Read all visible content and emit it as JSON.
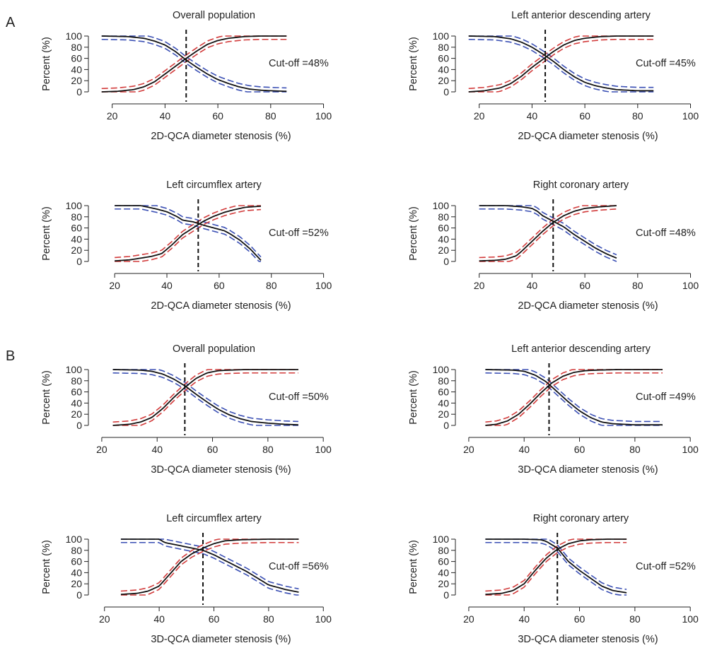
{
  "section_labels": [
    {
      "label": "A"
    },
    {
      "label": "B"
    }
  ],
  "chart_data": [
    {
      "type": "line",
      "section": "A",
      "title": "Overall population",
      "xlabel": "2D-QCA diameter stenosis (%)",
      "ylabel": "Percent (%)",
      "xlim": [
        15,
        102
      ],
      "ylim": [
        0,
        100
      ],
      "xticks": [
        20,
        40,
        60,
        80,
        100
      ],
      "yticks": [
        0,
        20,
        40,
        60,
        80,
        100
      ],
      "cutoff": 48,
      "annotation": "Cut-off =48%",
      "series": [
        {
          "role": "specificity",
          "color": "#3a4fb4",
          "x": [
            16,
            26,
            32,
            36,
            40,
            44,
            48,
            52,
            56,
            60,
            64,
            68,
            72,
            76,
            80,
            86
          ],
          "values": [
            100,
            99,
            96,
            91,
            84,
            72,
            57,
            44,
            32,
            22,
            15,
            9,
            5,
            3,
            2,
            1
          ]
        },
        {
          "role": "sensitivity",
          "color": "#d23b3b",
          "x": [
            16,
            22,
            28,
            32,
            36,
            40,
            44,
            48,
            52,
            56,
            60,
            64,
            70,
            76,
            86
          ],
          "values": [
            0,
            1,
            4,
            9,
            18,
            32,
            46,
            60,
            73,
            85,
            92,
            96,
            99,
            100,
            100
          ]
        }
      ]
    },
    {
      "type": "line",
      "section": "A",
      "title": "Left anterior descending artery",
      "xlabel": "2D-QCA diameter stenosis (%)",
      "ylabel": "Percent (%)",
      "xlim": [
        15,
        102
      ],
      "ylim": [
        0,
        100
      ],
      "xticks": [
        20,
        40,
        60,
        80,
        100
      ],
      "yticks": [
        0,
        20,
        40,
        60,
        80,
        100
      ],
      "cutoff": 45,
      "annotation": "Cut-off =45%",
      "series": [
        {
          "role": "specificity",
          "color": "#3a4fb4",
          "x": [
            16,
            26,
            32,
            36,
            40,
            44,
            48,
            52,
            56,
            60,
            64,
            68,
            72,
            76,
            80,
            86
          ],
          "values": [
            100,
            99,
            95,
            89,
            80,
            68,
            55,
            40,
            27,
            17,
            11,
            7,
            4,
            3,
            2,
            2
          ]
        },
        {
          "role": "sensitivity",
          "color": "#d23b3b",
          "x": [
            16,
            22,
            28,
            32,
            36,
            40,
            44,
            48,
            52,
            56,
            60,
            66,
            72,
            80,
            86
          ],
          "values": [
            0,
            2,
            7,
            15,
            28,
            44,
            58,
            72,
            84,
            92,
            96,
            99,
            100,
            100,
            100
          ]
        }
      ]
    },
    {
      "type": "line",
      "section": "A",
      "title": "Left circumflex artery",
      "xlabel": "2D-QCA diameter stenosis (%)",
      "ylabel": "Percent (%)",
      "xlim": [
        14,
        102
      ],
      "ylim": [
        0,
        100
      ],
      "xticks": [
        20,
        40,
        60,
        80,
        100
      ],
      "yticks": [
        0,
        20,
        40,
        60,
        80,
        100
      ],
      "cutoff": 52,
      "annotation": "Cut-off =52%",
      "series": [
        {
          "role": "specificity",
          "color": "#3a4fb4",
          "x": [
            20,
            30,
            36,
            40,
            44,
            46,
            50,
            54,
            58,
            62,
            64,
            68,
            72,
            76
          ],
          "values": [
            100,
            100,
            94,
            89,
            80,
            74,
            71,
            65,
            60,
            55,
            50,
            38,
            22,
            2
          ]
        },
        {
          "role": "sensitivity",
          "color": "#d23b3b",
          "x": [
            20,
            26,
            30,
            34,
            38,
            42,
            46,
            50,
            54,
            58,
            62,
            66,
            70,
            76
          ],
          "values": [
            1,
            3,
            6,
            9,
            14,
            30,
            48,
            60,
            72,
            81,
            88,
            93,
            97,
            99
          ]
        }
      ]
    },
    {
      "type": "line",
      "section": "A",
      "title": "Right coronary artery",
      "xlabel": "2D-QCA diameter stenosis (%)",
      "ylabel": "Percent (%)",
      "xlim": [
        15,
        102
      ],
      "ylim": [
        0,
        100
      ],
      "xticks": [
        20,
        40,
        60,
        80,
        100
      ],
      "yticks": [
        0,
        20,
        40,
        60,
        80,
        100
      ],
      "cutoff": 48,
      "annotation": "Cut-off =48%",
      "series": [
        {
          "role": "specificity",
          "color": "#3a4fb4",
          "x": [
            20,
            30,
            36,
            40,
            42,
            44,
            48,
            52,
            56,
            60,
            64,
            68,
            72
          ],
          "values": [
            100,
            100,
            98,
            95,
            90,
            82,
            72,
            62,
            48,
            36,
            24,
            14,
            6
          ]
        },
        {
          "role": "sensitivity",
          "color": "#d23b3b",
          "x": [
            20,
            26,
            30,
            34,
            36,
            40,
            44,
            48,
            52,
            56,
            60,
            66,
            72
          ],
          "values": [
            1,
            2,
            4,
            10,
            18,
            36,
            54,
            70,
            82,
            90,
            95,
            98,
            100
          ]
        }
      ]
    },
    {
      "type": "line",
      "section": "B",
      "title": "Overall population",
      "xlabel": "3D-QCA diameter stenosis (%)",
      "ylabel": "Percent (%)",
      "xlim": [
        19,
        102
      ],
      "ylim": [
        0,
        100
      ],
      "xticks": [
        20,
        40,
        60,
        80,
        100
      ],
      "yticks": [
        0,
        20,
        40,
        60,
        80,
        100
      ],
      "cutoff": 50,
      "annotation": "Cut-off =50%",
      "series": [
        {
          "role": "specificity",
          "color": "#3a4fb4",
          "x": [
            24,
            34,
            38,
            42,
            46,
            50,
            54,
            58,
            62,
            66,
            70,
            74,
            80,
            86,
            91
          ],
          "values": [
            100,
            99,
            97,
            92,
            83,
            71,
            56,
            42,
            29,
            19,
            12,
            7,
            4,
            2,
            1
          ]
        },
        {
          "role": "sensitivity",
          "color": "#d23b3b",
          "x": [
            24,
            30,
            34,
            38,
            42,
            46,
            50,
            54,
            58,
            62,
            66,
            72,
            80,
            91
          ],
          "values": [
            0,
            2,
            6,
            14,
            30,
            50,
            68,
            84,
            94,
            98,
            99,
            100,
            100,
            100
          ]
        }
      ]
    },
    {
      "type": "line",
      "section": "B",
      "title": "Left anterior descending artery",
      "xlabel": "3D-QCA diameter stenosis (%)",
      "ylabel": "Percent (%)",
      "xlim": [
        19,
        102
      ],
      "ylim": [
        0,
        100
      ],
      "xticks": [
        20,
        40,
        60,
        80,
        100
      ],
      "yticks": [
        0,
        20,
        40,
        60,
        80,
        100
      ],
      "cutoff": 49,
      "annotation": "Cut-off =49%",
      "series": [
        {
          "role": "specificity",
          "color": "#3a4fb4",
          "x": [
            26,
            36,
            40,
            44,
            48,
            52,
            56,
            60,
            64,
            68,
            72,
            80,
            90
          ],
          "values": [
            100,
            99,
            97,
            90,
            78,
            60,
            42,
            26,
            14,
            6,
            3,
            1,
            1
          ]
        },
        {
          "role": "sensitivity",
          "color": "#d23b3b",
          "x": [
            26,
            30,
            34,
            38,
            42,
            46,
            50,
            54,
            58,
            62,
            66,
            74,
            90
          ],
          "values": [
            0,
            2,
            8,
            20,
            38,
            58,
            76,
            88,
            95,
            98,
            99,
            100,
            100
          ]
        }
      ]
    },
    {
      "type": "line",
      "section": "B",
      "title": "Left circumflex artery",
      "xlabel": "3D-QCA diameter stenosis (%)",
      "ylabel": "Percent (%)",
      "xlim": [
        18,
        102
      ],
      "ylim": [
        0,
        100
      ],
      "xticks": [
        20,
        40,
        60,
        80,
        100
      ],
      "yticks": [
        0,
        20,
        40,
        60,
        80,
        100
      ],
      "cutoff": 56,
      "annotation": "Cut-off =56%",
      "series": [
        {
          "role": "specificity",
          "color": "#3a4fb4",
          "x": [
            26,
            36,
            40,
            42,
            46,
            50,
            54,
            56,
            60,
            64,
            68,
            72,
            76,
            80,
            86,
            91
          ],
          "values": [
            100,
            100,
            100,
            94,
            90,
            86,
            82,
            80,
            72,
            62,
            52,
            42,
            30,
            18,
            10,
            5
          ]
        },
        {
          "role": "sensitivity",
          "color": "#d23b3b",
          "x": [
            26,
            32,
            36,
            40,
            44,
            48,
            52,
            56,
            60,
            64,
            70,
            80,
            91
          ],
          "values": [
            1,
            3,
            7,
            16,
            38,
            60,
            74,
            84,
            92,
            97,
            99,
            100,
            100
          ]
        }
      ]
    },
    {
      "type": "line",
      "section": "B",
      "title": "Right coronary artery",
      "xlabel": "3D-QCA diameter stenosis (%)",
      "ylabel": "Percent (%)",
      "xlim": [
        19,
        102
      ],
      "ylim": [
        0,
        100
      ],
      "xticks": [
        20,
        40,
        60,
        80,
        100
      ],
      "yticks": [
        0,
        20,
        40,
        60,
        80,
        100
      ],
      "cutoff": 52,
      "annotation": "Cut-off =52%",
      "series": [
        {
          "role": "specificity",
          "color": "#3a4fb4",
          "x": [
            26,
            40,
            46,
            48,
            50,
            52,
            54,
            56,
            60,
            64,
            68,
            72,
            77
          ],
          "values": [
            100,
            100,
            99,
            96,
            90,
            84,
            72,
            60,
            44,
            30,
            16,
            8,
            4
          ]
        },
        {
          "role": "sensitivity",
          "color": "#d23b3b",
          "x": [
            26,
            32,
            36,
            40,
            44,
            48,
            52,
            56,
            60,
            64,
            70,
            77
          ],
          "values": [
            1,
            3,
            8,
            20,
            44,
            66,
            82,
            92,
            97,
            99,
            100,
            100
          ]
        }
      ]
    }
  ]
}
